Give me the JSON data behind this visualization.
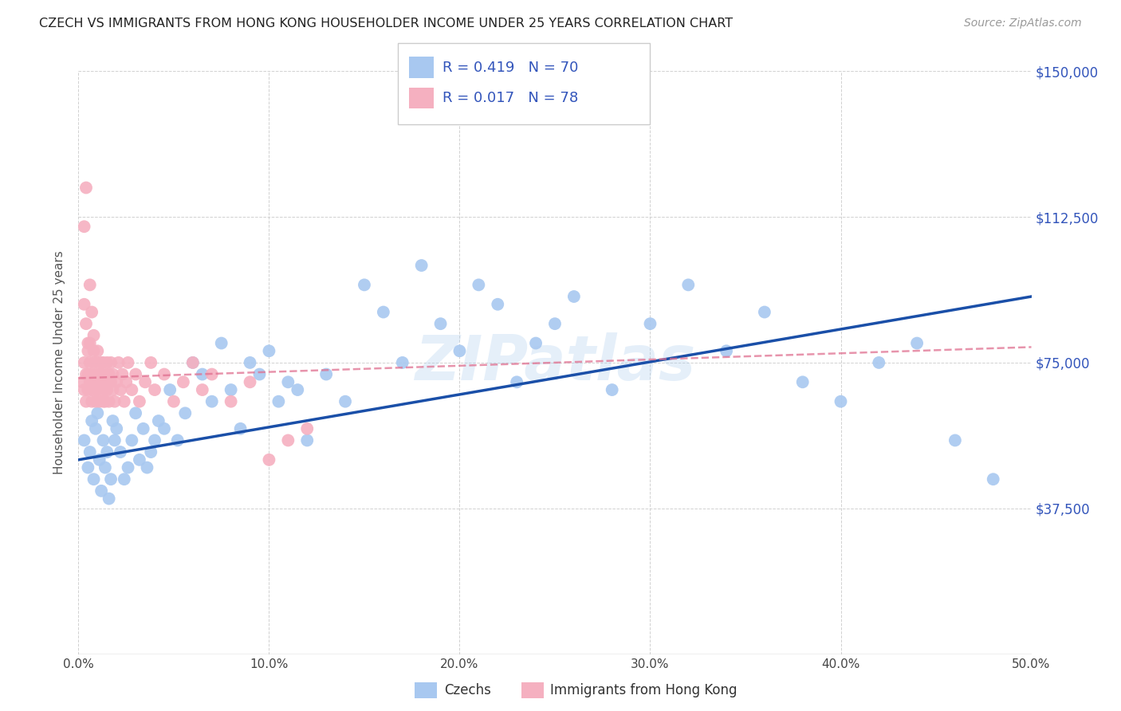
{
  "title": "CZECH VS IMMIGRANTS FROM HONG KONG HOUSEHOLDER INCOME UNDER 25 YEARS CORRELATION CHART",
  "source": "Source: ZipAtlas.com",
  "ylabel": "Householder Income Under 25 years",
  "legend_label1": "Czechs",
  "legend_label2": "Immigrants from Hong Kong",
  "R1": 0.419,
  "N1": 70,
  "R2": 0.017,
  "N2": 78,
  "color_blue": "#a8c8f0",
  "color_pink": "#f5b0c0",
  "color_blue_text": "#3355bb",
  "line_blue": "#1a4fa8",
  "line_pink": "#e07090",
  "watermark": "ZIPatlas",
  "xlim": [
    0.0,
    0.5
  ],
  "ylim": [
    0,
    150000
  ],
  "yticks": [
    0,
    37500,
    75000,
    112500,
    150000
  ],
  "ytick_labels": [
    "",
    "$37,500",
    "$75,000",
    "$112,500",
    "$150,000"
  ],
  "xtick_positions": [
    0.0,
    0.1,
    0.2,
    0.3,
    0.4,
    0.5
  ],
  "xtick_labels": [
    "0.0%",
    "10.0%",
    "20.0%",
    "30.0%",
    "40.0%",
    "50.0%"
  ],
  "blue_line_x": [
    0.0,
    0.5
  ],
  "blue_line_y": [
    50000,
    92000
  ],
  "pink_line_x": [
    0.0,
    0.5
  ],
  "pink_line_y": [
    71000,
    79000
  ],
  "czech_x": [
    0.003,
    0.005,
    0.006,
    0.007,
    0.008,
    0.009,
    0.01,
    0.011,
    0.012,
    0.013,
    0.014,
    0.015,
    0.016,
    0.017,
    0.018,
    0.019,
    0.02,
    0.022,
    0.024,
    0.026,
    0.028,
    0.03,
    0.032,
    0.034,
    0.036,
    0.038,
    0.04,
    0.042,
    0.045,
    0.048,
    0.052,
    0.056,
    0.06,
    0.065,
    0.07,
    0.075,
    0.08,
    0.085,
    0.09,
    0.095,
    0.1,
    0.105,
    0.11,
    0.115,
    0.12,
    0.13,
    0.14,
    0.15,
    0.16,
    0.17,
    0.18,
    0.19,
    0.2,
    0.21,
    0.22,
    0.23,
    0.24,
    0.25,
    0.26,
    0.28,
    0.3,
    0.32,
    0.34,
    0.36,
    0.38,
    0.4,
    0.42,
    0.44,
    0.46,
    0.48
  ],
  "czech_y": [
    55000,
    48000,
    52000,
    60000,
    45000,
    58000,
    62000,
    50000,
    42000,
    55000,
    48000,
    52000,
    40000,
    45000,
    60000,
    55000,
    58000,
    52000,
    45000,
    48000,
    55000,
    62000,
    50000,
    58000,
    48000,
    52000,
    55000,
    60000,
    58000,
    68000,
    55000,
    62000,
    75000,
    72000,
    65000,
    80000,
    68000,
    58000,
    75000,
    72000,
    78000,
    65000,
    70000,
    68000,
    55000,
    72000,
    65000,
    95000,
    88000,
    75000,
    100000,
    85000,
    78000,
    95000,
    90000,
    70000,
    80000,
    85000,
    92000,
    68000,
    85000,
    95000,
    78000,
    88000,
    70000,
    65000,
    75000,
    80000,
    55000,
    45000
  ],
  "hk_x": [
    0.002,
    0.003,
    0.003,
    0.004,
    0.004,
    0.005,
    0.005,
    0.005,
    0.006,
    0.006,
    0.006,
    0.007,
    0.007,
    0.007,
    0.008,
    0.008,
    0.008,
    0.009,
    0.009,
    0.009,
    0.01,
    0.01,
    0.01,
    0.01,
    0.011,
    0.011,
    0.011,
    0.012,
    0.012,
    0.012,
    0.013,
    0.013,
    0.013,
    0.014,
    0.014,
    0.014,
    0.015,
    0.015,
    0.015,
    0.016,
    0.016,
    0.017,
    0.017,
    0.018,
    0.018,
    0.019,
    0.02,
    0.021,
    0.022,
    0.023,
    0.024,
    0.025,
    0.026,
    0.028,
    0.03,
    0.032,
    0.035,
    0.038,
    0.04,
    0.045,
    0.05,
    0.055,
    0.06,
    0.065,
    0.07,
    0.08,
    0.09,
    0.1,
    0.11,
    0.12,
    0.003,
    0.004,
    0.005,
    0.006,
    0.007,
    0.008,
    0.003,
    0.004
  ],
  "hk_y": [
    70000,
    75000,
    68000,
    72000,
    65000,
    68000,
    78000,
    72000,
    75000,
    70000,
    80000,
    68000,
    72000,
    65000,
    78000,
    70000,
    75000,
    68000,
    72000,
    65000,
    70000,
    75000,
    68000,
    78000,
    72000,
    65000,
    70000,
    75000,
    68000,
    72000,
    65000,
    70000,
    75000,
    68000,
    72000,
    65000,
    70000,
    75000,
    68000,
    72000,
    65000,
    70000,
    75000,
    68000,
    72000,
    65000,
    70000,
    75000,
    68000,
    72000,
    65000,
    70000,
    75000,
    68000,
    72000,
    65000,
    70000,
    75000,
    68000,
    72000,
    65000,
    70000,
    75000,
    68000,
    72000,
    65000,
    70000,
    50000,
    55000,
    58000,
    90000,
    85000,
    80000,
    95000,
    88000,
    82000,
    110000,
    120000
  ]
}
